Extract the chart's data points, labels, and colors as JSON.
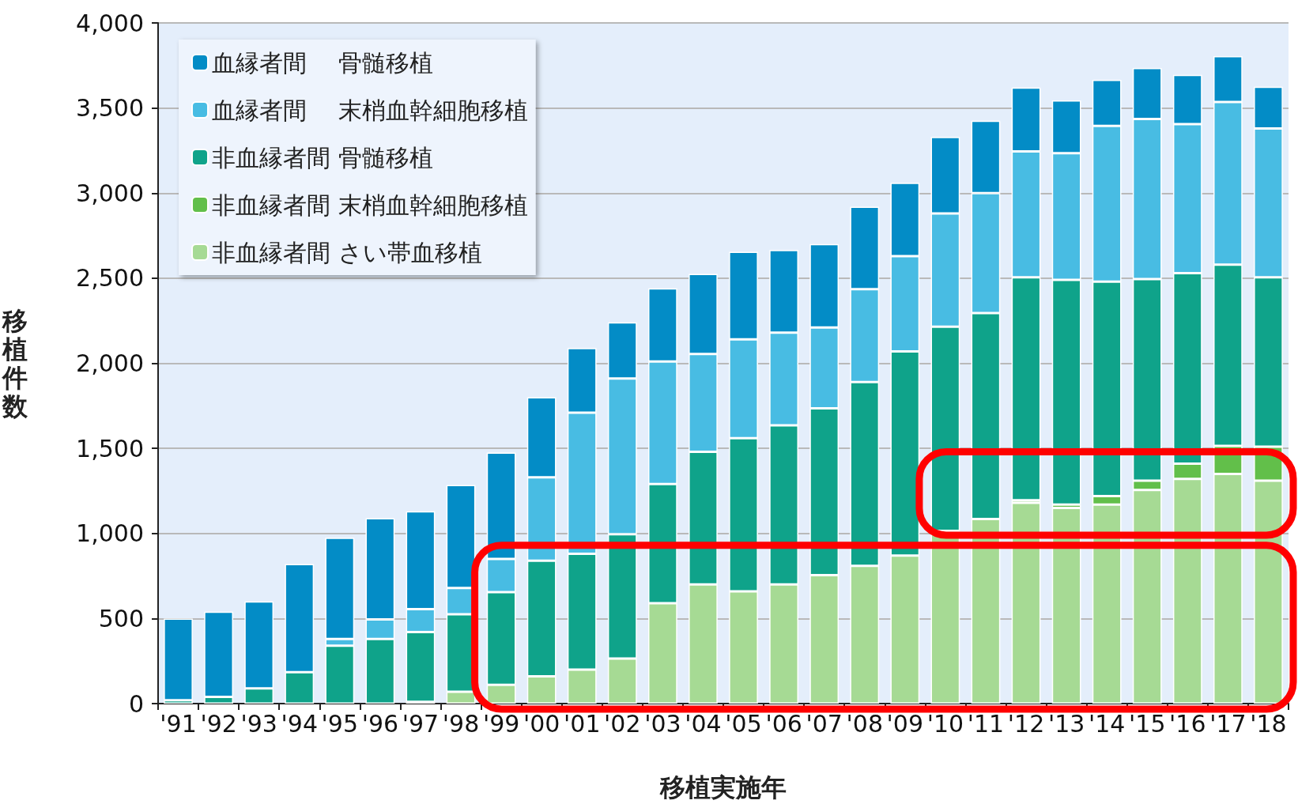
{
  "chart_data": {
    "type": "bar",
    "stacked": true,
    "xlabel": "移植実施年",
    "ylabel": "移植件数",
    "categories": [
      "'91",
      "'92",
      "'93",
      "'94",
      "'95",
      "'96",
      "'97",
      "'98",
      "'99",
      "'00",
      "'01",
      "'02",
      "'03",
      "'04",
      "'05",
      "'06",
      "'07",
      "'08",
      "'09",
      "'10",
      "'11",
      "'12",
      "'13",
      "'14",
      "'15",
      "'16",
      "'17",
      "'18"
    ],
    "series": [
      {
        "name": "非血縁者間 さい帯血移植",
        "color": "#a6da94",
        "values": [
          0,
          0,
          0,
          0,
          0,
          0,
          10,
          70,
          110,
          160,
          200,
          265,
          590,
          700,
          660,
          700,
          755,
          810,
          870,
          1015,
          1085,
          1180,
          1150,
          1170,
          1255,
          1320,
          1350,
          1310
        ]
      },
      {
        "name": "非血縁者間 末梢血幹細胞移植",
        "color": "#62bf4a",
        "values": [
          0,
          0,
          0,
          0,
          0,
          0,
          0,
          0,
          0,
          0,
          0,
          0,
          0,
          0,
          0,
          0,
          0,
          0,
          0,
          0,
          0,
          15,
          20,
          50,
          55,
          90,
          165,
          200
        ]
      },
      {
        "name": "非血縁者間 骨髄移植",
        "color": "#0fa38a",
        "values": [
          20,
          40,
          90,
          185,
          340,
          380,
          410,
          455,
          545,
          680,
          680,
          730,
          700,
          780,
          900,
          935,
          980,
          1080,
          1200,
          1200,
          1210,
          1310,
          1320,
          1260,
          1185,
          1120,
          1065,
          995
        ]
      },
      {
        "name": "血縁者間　 末梢血幹細胞移植",
        "color": "#48bce3",
        "values": [
          0,
          0,
          0,
          0,
          40,
          115,
          135,
          155,
          195,
          490,
          830,
          915,
          720,
          575,
          580,
          545,
          475,
          545,
          560,
          665,
          705,
          740,
          745,
          915,
          940,
          875,
          955,
          875
        ]
      },
      {
        "name": "血縁者間　 骨髄移植",
        "color": "#038cc6",
        "values": [
          480,
          500,
          510,
          635,
          595,
          595,
          575,
          605,
          625,
          470,
          380,
          330,
          430,
          470,
          515,
          485,
          490,
          485,
          430,
          450,
          425,
          375,
          310,
          270,
          300,
          290,
          270,
          245
        ]
      }
    ],
    "ylim": [
      0,
      4000
    ],
    "yticks": [
      0,
      500,
      {
        "value": 1000,
        "label": "1,000"
      },
      {
        "value": 1500,
        "label": "1,500"
      },
      {
        "value": 2000,
        "label": "2,000"
      },
      {
        "value": 2500,
        "label": "2,500"
      },
      {
        "value": 3000,
        "label": "3,000"
      },
      {
        "value": 3500,
        "label": "3,500"
      },
      {
        "value": 4000,
        "label": "4,000"
      }
    ],
    "grid": "y",
    "legend": "top left"
  }
}
